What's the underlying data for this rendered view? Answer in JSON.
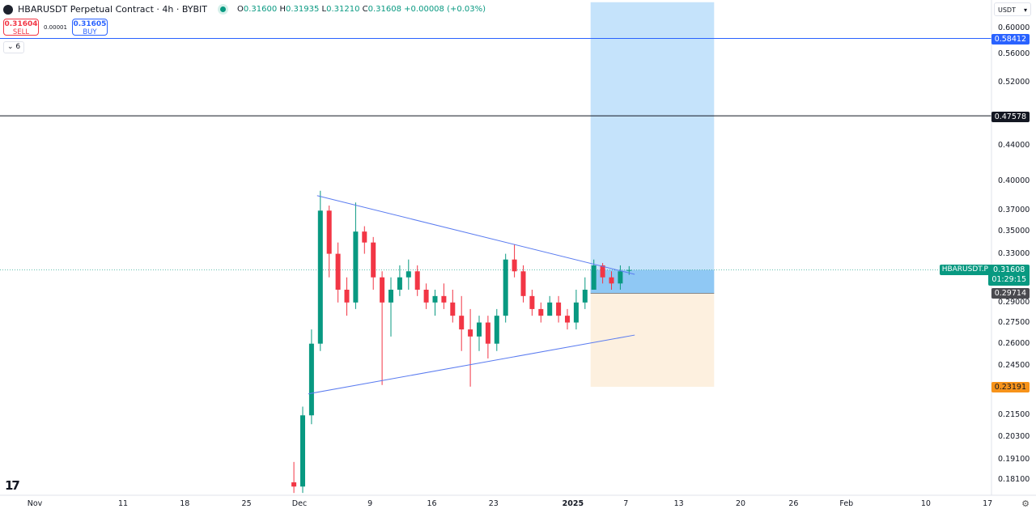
{
  "header": {
    "title": "HBARUSDT Perpetual Contract · 4h · BYBIT",
    "ohlc": {
      "o_label": "O",
      "o": "0.31600",
      "h_label": "H",
      "h": "0.31935",
      "l_label": "L",
      "l": "0.31210",
      "c_label": "C",
      "c": "0.31608",
      "change": "+0.00008 (+0.03%)"
    }
  },
  "trade": {
    "sell_price": "0.31604",
    "sell_label": "SELL",
    "spread": "0.00001",
    "buy_price": "0.31605",
    "buy_label": "BUY"
  },
  "indicators_toggle": "6",
  "currency": "USDT",
  "colors": {
    "up": "#089981",
    "down": "#f23645",
    "trendline": "#5b7cf0",
    "target_zone": "#c5e3fb",
    "stop_zone": "#fdf0df",
    "entry_zone": "#8fc8f4"
  },
  "chart_data": {
    "type": "candlestick",
    "timeframe": "4h",
    "y_scale": "log",
    "ylim": [
      0.175,
      0.62
    ],
    "grid": false,
    "y_ticks": [
      "0.60000",
      "0.56000",
      "0.52000",
      "0.44000",
      "0.40000",
      "0.37000",
      "0.35000",
      "0.33000",
      "0.29000",
      "0.27500",
      "0.26000",
      "0.24500",
      "0.21500",
      "0.20300",
      "0.19100",
      "0.18100"
    ],
    "x_ticks": [
      {
        "date": "2024-11-01",
        "label": "Nov"
      },
      {
        "date": "2024-11-11",
        "label": "11"
      },
      {
        "date": "2024-11-18",
        "label": "18"
      },
      {
        "date": "2024-11-25",
        "label": "25"
      },
      {
        "date": "2024-12-01",
        "label": "Dec"
      },
      {
        "date": "2024-12-09",
        "label": "9"
      },
      {
        "date": "2024-12-16",
        "label": "16"
      },
      {
        "date": "2024-12-23",
        "label": "23"
      },
      {
        "date": "2025-01-01",
        "label": "2025",
        "bold": true
      },
      {
        "date": "2025-01-07",
        "label": "7"
      },
      {
        "date": "2025-01-13",
        "label": "13"
      },
      {
        "date": "2025-01-20",
        "label": "20"
      },
      {
        "date": "2025-01-26",
        "label": "26"
      },
      {
        "date": "2025-02-01",
        "label": "Feb"
      },
      {
        "date": "2025-02-10",
        "label": "10"
      },
      {
        "date": "2025-02-17",
        "label": "17"
      }
    ],
    "candles": [
      [
        "2024-11-30",
        0.18,
        0.19,
        0.175,
        0.178
      ],
      [
        "2024-12-01",
        0.178,
        0.22,
        0.175,
        0.215
      ],
      [
        "2024-12-02",
        0.215,
        0.27,
        0.21,
        0.26
      ],
      [
        "2024-12-03",
        0.26,
        0.39,
        0.255,
        0.37
      ],
      [
        "2024-12-04",
        0.37,
        0.375,
        0.31,
        0.33
      ],
      [
        "2024-12-05",
        0.33,
        0.34,
        0.29,
        0.3
      ],
      [
        "2024-12-06",
        0.3,
        0.31,
        0.28,
        0.29
      ],
      [
        "2024-12-07",
        0.29,
        0.378,
        0.285,
        0.35
      ],
      [
        "2024-12-08",
        0.35,
        0.355,
        0.33,
        0.34
      ],
      [
        "2024-12-09",
        0.34,
        0.345,
        0.3,
        0.31
      ],
      [
        "2024-12-10",
        0.31,
        0.315,
        0.233,
        0.29
      ],
      [
        "2024-12-11",
        0.29,
        0.31,
        0.265,
        0.3
      ],
      [
        "2024-12-12",
        0.3,
        0.32,
        0.295,
        0.31
      ],
      [
        "2024-12-13",
        0.31,
        0.325,
        0.3,
        0.315
      ],
      [
        "2024-12-14",
        0.315,
        0.32,
        0.295,
        0.3
      ],
      [
        "2024-12-15",
        0.3,
        0.305,
        0.285,
        0.29
      ],
      [
        "2024-12-16",
        0.29,
        0.3,
        0.28,
        0.295
      ],
      [
        "2024-12-17",
        0.295,
        0.305,
        0.285,
        0.29
      ],
      [
        "2024-12-18",
        0.29,
        0.3,
        0.275,
        0.28
      ],
      [
        "2024-12-19",
        0.28,
        0.295,
        0.255,
        0.27
      ],
      [
        "2024-12-20",
        0.27,
        0.285,
        0.232,
        0.265
      ],
      [
        "2024-12-21",
        0.265,
        0.28,
        0.255,
        0.275
      ],
      [
        "2024-12-22",
        0.275,
        0.28,
        0.25,
        0.26
      ],
      [
        "2024-12-23",
        0.26,
        0.285,
        0.255,
        0.28
      ],
      [
        "2024-12-24",
        0.28,
        0.33,
        0.275,
        0.325
      ],
      [
        "2024-12-25",
        0.325,
        0.338,
        0.31,
        0.315
      ],
      [
        "2024-12-26",
        0.315,
        0.32,
        0.29,
        0.295
      ],
      [
        "2024-12-27",
        0.295,
        0.3,
        0.28,
        0.285
      ],
      [
        "2024-12-28",
        0.285,
        0.29,
        0.275,
        0.28
      ],
      [
        "2024-12-29",
        0.28,
        0.295,
        0.28,
        0.29
      ],
      [
        "2024-12-30",
        0.29,
        0.295,
        0.275,
        0.28
      ],
      [
        "2024-12-31",
        0.28,
        0.285,
        0.27,
        0.275
      ],
      [
        "2025-01-01",
        0.275,
        0.3,
        0.27,
        0.29
      ],
      [
        "2025-01-02",
        0.29,
        0.31,
        0.285,
        0.3
      ],
      [
        "2025-01-03",
        0.3,
        0.325,
        0.3,
        0.32
      ],
      [
        "2025-01-04",
        0.32,
        0.322,
        0.305,
        0.31
      ],
      [
        "2025-01-05",
        0.31,
        0.315,
        0.3,
        0.305
      ],
      [
        "2025-01-06",
        0.305,
        0.32,
        0.3,
        0.315
      ],
      [
        "2025-01-07",
        0.316,
        0.31935,
        0.3121,
        0.31608
      ]
    ],
    "trendlines": [
      {
        "from": [
          "2024-12-03",
          0.385
        ],
        "to": [
          "2025-01-08",
          0.3125
        ]
      },
      {
        "from": [
          "2024-12-02",
          0.2276
        ],
        "to": [
          "2025-01-08",
          0.266
        ]
      }
    ],
    "horizontal_lines": [
      {
        "price": 0.58412,
        "label": "0.58412",
        "color": "#2962ff"
      },
      {
        "price": 0.47578,
        "label": "0.47578",
        "color": "#131722"
      }
    ],
    "position": {
      "start": "2025-01-03",
      "end": "2025-01-17",
      "entry": 0.29714,
      "entry_label": "0.29714",
      "stop": 0.23191,
      "stop_label": "0.23191",
      "target_top": 0.643
    },
    "last_price": {
      "symbol": "HBARUSDT.P",
      "price": 0.31608,
      "label": "0.31608",
      "countdown": "01:29:15"
    }
  }
}
